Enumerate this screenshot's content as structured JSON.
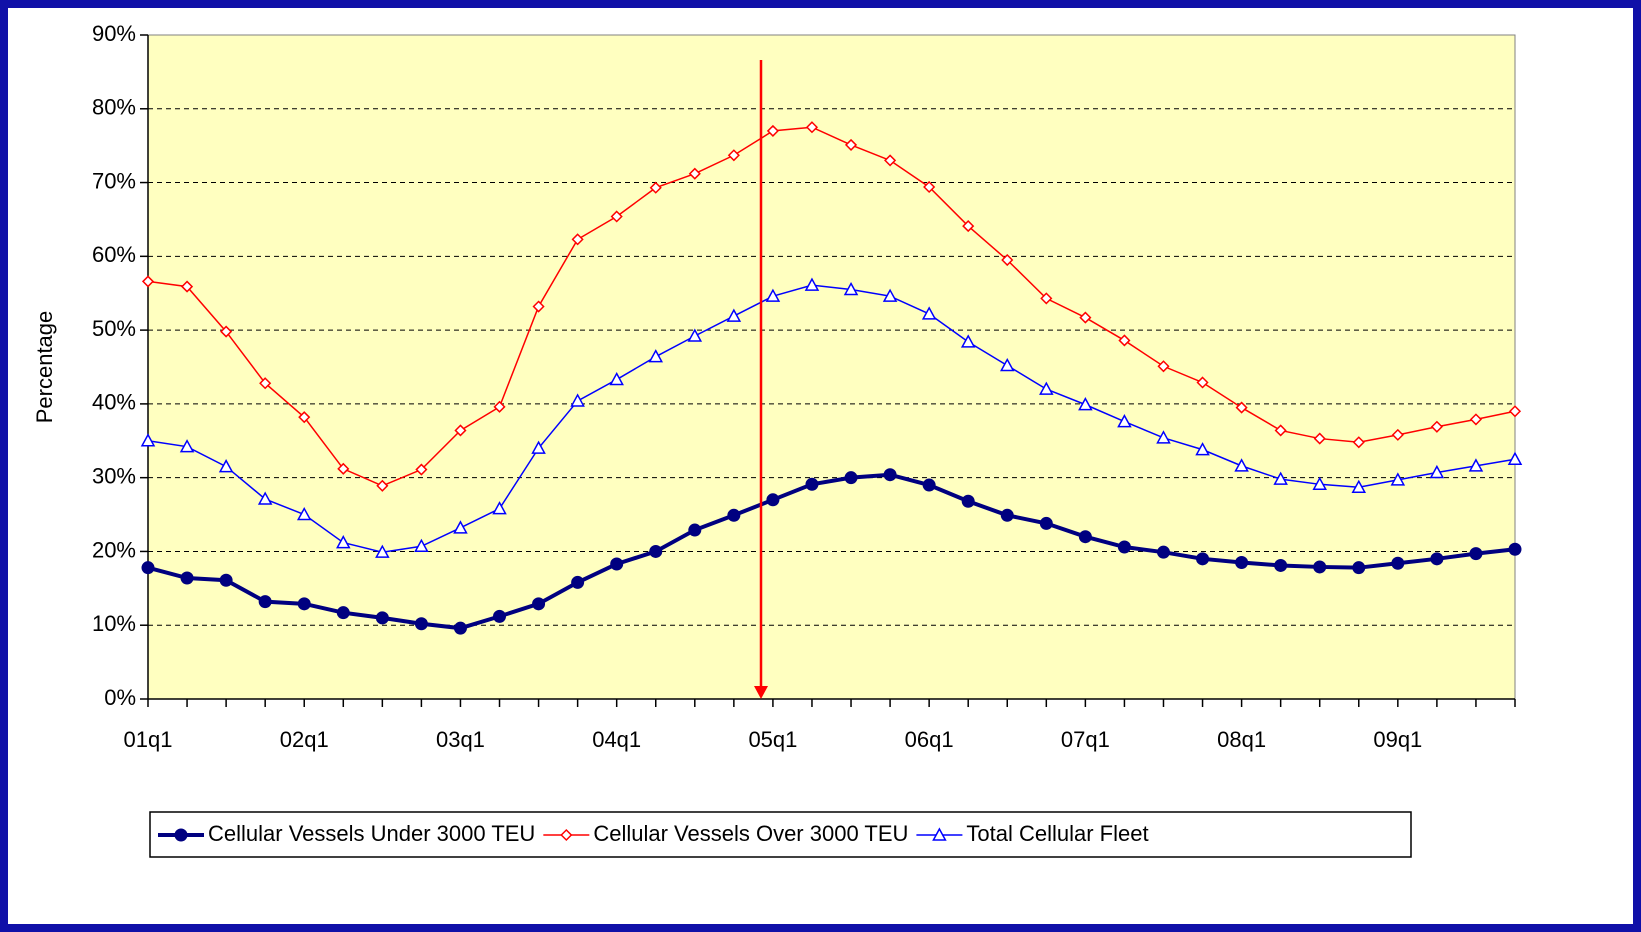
{
  "chart_data": {
    "type": "line",
    "y_axis_label": "Percentage",
    "categories": [
      "01q1",
      null,
      null,
      null,
      "02q1",
      null,
      null,
      null,
      "03q1",
      null,
      null,
      null,
      "04q1",
      null,
      null,
      null,
      "05q1",
      null,
      null,
      null,
      "06q1",
      null,
      null,
      null,
      "07q1",
      null,
      null,
      null,
      "08q1",
      null,
      null,
      null,
      "09q1",
      null,
      null,
      null
    ],
    "series": [
      {
        "name": "Cellular Vessels Under 3000 TEU",
        "color": "#000080",
        "marker": "circle",
        "values": [
          17.8,
          16.4,
          16.1,
          13.2,
          12.9,
          11.7,
          11.0,
          10.2,
          9.6,
          11.2,
          12.9,
          15.8,
          18.3,
          20.0,
          22.9,
          24.9,
          27.0,
          29.1,
          30.0,
          30.4,
          29.0,
          26.8,
          24.9,
          23.8,
          22.0,
          20.6,
          19.9,
          19.0,
          18.5,
          18.1,
          17.9,
          17.8,
          18.4,
          19.0,
          19.7,
          20.3
        ]
      },
      {
        "name": "Cellular Vessels Over 3000 TEU",
        "color": "#ff0000",
        "marker": "diamond",
        "values": [
          56.6,
          55.9,
          49.8,
          42.8,
          38.2,
          31.2,
          28.9,
          31.1,
          36.4,
          39.6,
          53.2,
          62.3,
          65.4,
          69.3,
          71.2,
          73.7,
          77.0,
          77.5,
          75.1,
          73.0,
          69.4,
          64.1,
          59.5,
          54.3,
          51.7,
          48.6,
          45.1,
          42.9,
          39.5,
          36.4,
          35.3,
          34.8,
          35.8,
          36.9,
          37.9,
          39.0
        ]
      },
      {
        "name": "Total Cellular Fleet",
        "color": "#0000ff",
        "marker": "triangle",
        "values": [
          35.0,
          34.2,
          31.5,
          27.1,
          25.0,
          21.2,
          19.9,
          20.7,
          23.2,
          25.8,
          34.0,
          40.4,
          43.3,
          46.4,
          49.2,
          51.9,
          54.6,
          56.1,
          55.5,
          54.6,
          52.2,
          48.4,
          45.2,
          42.0,
          39.9,
          37.6,
          35.4,
          33.8,
          31.6,
          29.8,
          29.1,
          28.7,
          29.7,
          30.7,
          31.6,
          32.5
        ]
      }
    ],
    "ylim": [
      0,
      90
    ],
    "yticks": [
      {
        "value": 0,
        "label": "0%"
      },
      {
        "value": 10,
        "label": "10%"
      },
      {
        "value": 20,
        "label": "20%"
      },
      {
        "value": 30,
        "label": "30%"
      },
      {
        "value": 40,
        "label": "40%"
      },
      {
        "value": 50,
        "label": "50%"
      },
      {
        "value": 60,
        "label": "60%"
      },
      {
        "value": 70,
        "label": "70%"
      },
      {
        "value": 80,
        "label": "80%"
      },
      {
        "value": 90,
        "label": "90%"
      }
    ],
    "grid": true,
    "legend": "bottom",
    "plot_background": "#ffffc0"
  }
}
